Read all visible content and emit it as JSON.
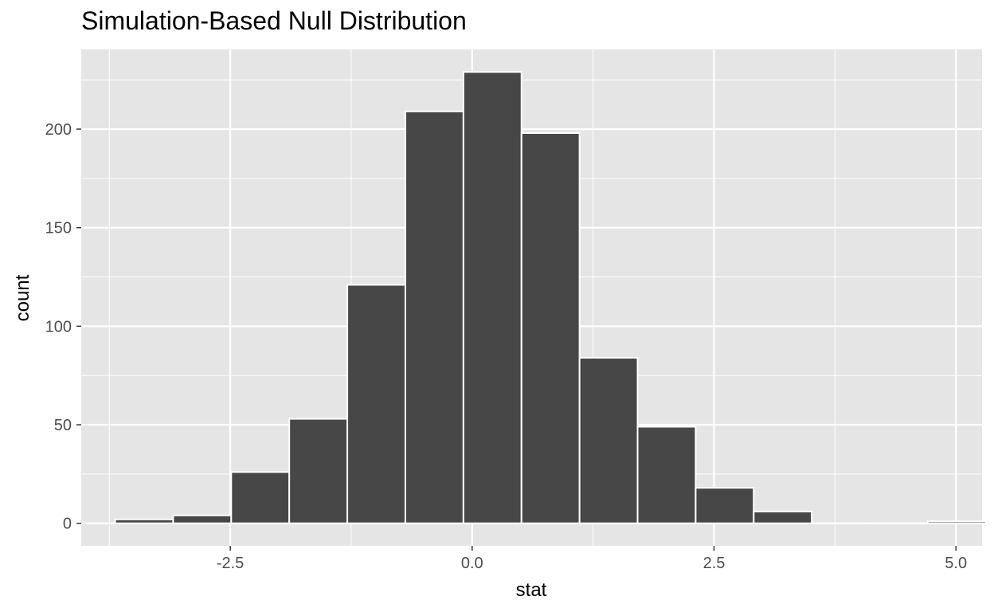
{
  "chart_data": {
    "type": "bar",
    "title": "Simulation-Based Null Distribution",
    "xlabel": "stat",
    "ylabel": "count",
    "bin_width": 0.6,
    "bins": [
      {
        "x_start": -3.69,
        "x_end": -3.09,
        "count": 2
      },
      {
        "x_start": -3.09,
        "x_end": -2.49,
        "count": 4
      },
      {
        "x_start": -2.49,
        "x_end": -1.89,
        "count": 26
      },
      {
        "x_start": -1.89,
        "x_end": -1.29,
        "count": 53
      },
      {
        "x_start": -1.29,
        "x_end": -0.69,
        "count": 121
      },
      {
        "x_start": -0.69,
        "x_end": -0.09,
        "count": 209
      },
      {
        "x_start": -0.09,
        "x_end": 0.51,
        "count": 229
      },
      {
        "x_start": 0.51,
        "x_end": 1.11,
        "count": 198
      },
      {
        "x_start": 1.11,
        "x_end": 1.71,
        "count": 84
      },
      {
        "x_start": 1.71,
        "x_end": 2.31,
        "count": 49
      },
      {
        "x_start": 2.31,
        "x_end": 2.91,
        "count": 18
      },
      {
        "x_start": 2.91,
        "x_end": 3.51,
        "count": 6
      },
      {
        "x_start": 3.51,
        "x_end": 4.11,
        "count": 0
      },
      {
        "x_start": 4.11,
        "x_end": 4.71,
        "count": 0
      },
      {
        "x_start": 4.71,
        "x_end": 5.31,
        "count": 1
      }
    ],
    "x_ticks": [
      {
        "value": -2.5,
        "label": "-2.5"
      },
      {
        "value": 0.0,
        "label": "0.0"
      },
      {
        "value": 2.5,
        "label": "2.5"
      },
      {
        "value": 5.0,
        "label": "5.0"
      }
    ],
    "y_ticks": [
      {
        "value": 0,
        "label": "0"
      },
      {
        "value": 50,
        "label": "50"
      },
      {
        "value": 100,
        "label": "100"
      },
      {
        "value": 150,
        "label": "150"
      },
      {
        "value": 200,
        "label": "200"
      }
    ],
    "xlim": [
      -4.04,
      5.27
    ],
    "ylim": [
      -11.45,
      240.45
    ],
    "grid": true,
    "colors": {
      "panel_background": "#e5e5e5",
      "grid_line": "#ffffff",
      "bar_fill": "#474747",
      "bar_outline": "#ffffff"
    }
  }
}
